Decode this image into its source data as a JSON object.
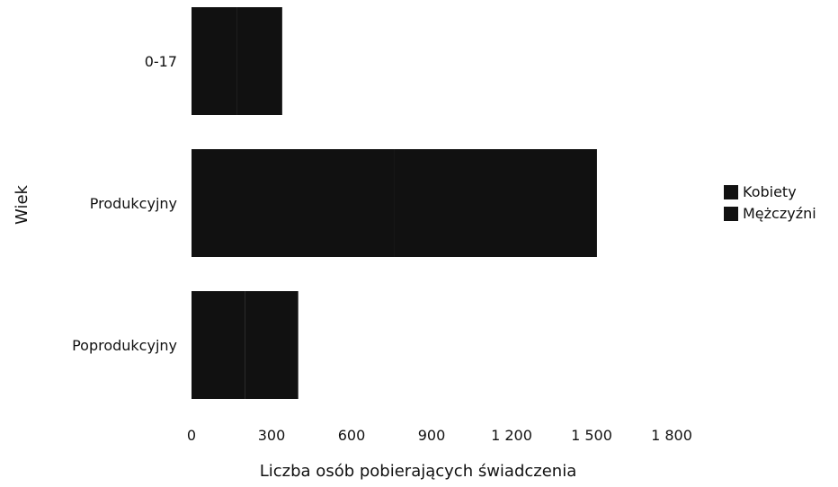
{
  "chart_data": {
    "type": "bar",
    "orientation": "horizontal",
    "stacked": true,
    "categories": [
      "0-17",
      "Produkcyjny",
      "Poprodukcyjny"
    ],
    "series": [
      {
        "name": "Kobiety",
        "values": [
          170,
          760,
          200
        ],
        "color": "#111111"
      },
      {
        "name": "Mężczyźni",
        "values": [
          170,
          760,
          200
        ],
        "color": "#111111"
      }
    ],
    "xlabel": "Liczba osób pobierających świadczenia",
    "ylabel": "Wiek",
    "xlim": [
      0,
      1800
    ],
    "xticks": [
      0,
      300,
      600,
      900,
      1200,
      1500,
      1800
    ],
    "xtick_labels": [
      "0",
      "300",
      "600",
      "900",
      "1 200",
      "1 500",
      "1 800"
    ],
    "grid": false,
    "legend_position": "right"
  }
}
